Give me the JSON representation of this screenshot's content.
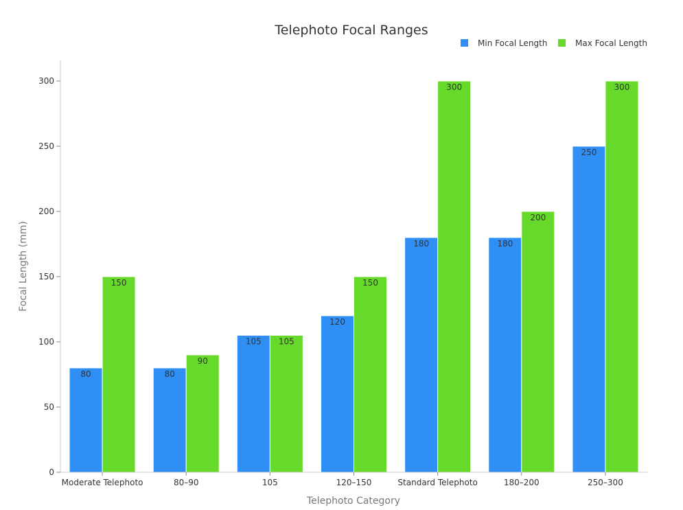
{
  "chart_data": {
    "type": "bar",
    "title": "Telephoto Focal Ranges",
    "xlabel": "Telephoto Category",
    "ylabel": "Focal Length (mm)",
    "categories": [
      "Moderate Telephoto",
      "80–90",
      "105",
      "120–150",
      "Standard Telephoto",
      "180–200",
      "250–300"
    ],
    "series": [
      {
        "name": "Min Focal Length",
        "color": "#2f8ff5",
        "values": [
          80,
          80,
          105,
          120,
          180,
          180,
          250
        ]
      },
      {
        "name": "Max Focal Length",
        "color": "#66d92a",
        "values": [
          150,
          90,
          105,
          150,
          300,
          200,
          300
        ]
      }
    ],
    "ylim": [
      0,
      300
    ],
    "yticks": [
      0,
      50,
      100,
      150,
      200,
      250,
      300
    ],
    "grid": false,
    "legend_position": "top-right",
    "data_labels": true
  }
}
